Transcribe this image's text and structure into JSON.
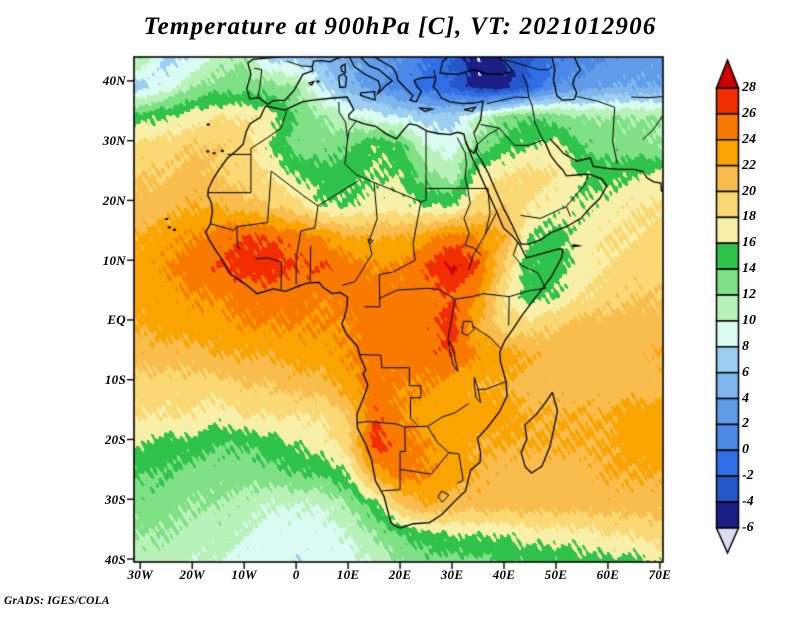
{
  "title": "Temperature at 900hPa [C], VT: 2021012906",
  "credit": "GrADS: IGES/COLA",
  "axes": {
    "lat_ticks": [
      "40N",
      "30N",
      "20N",
      "10N",
      "EQ",
      "10S",
      "20S",
      "30S",
      "40S"
    ],
    "lat_values": [
      40,
      30,
      20,
      10,
      0,
      -10,
      -20,
      -30,
      -40
    ],
    "lon_ticks": [
      "30W",
      "20W",
      "10W",
      "0",
      "10E",
      "20E",
      "30E",
      "40E",
      "50E",
      "60E",
      "70E"
    ],
    "lon_values": [
      -30,
      -20,
      -10,
      0,
      10,
      20,
      30,
      40,
      50,
      60,
      70
    ]
  },
  "colorbar": {
    "labels": [
      "28",
      "26",
      "24",
      "22",
      "20",
      "18",
      "16",
      "14",
      "12",
      "10",
      "8",
      "6",
      "4",
      "2",
      "0",
      "-2",
      "-4",
      "-6"
    ],
    "levels": [
      28,
      26,
      24,
      22,
      20,
      18,
      16,
      14,
      12,
      10,
      8,
      6,
      4,
      2,
      0,
      -2,
      -4,
      -6
    ],
    "colors_top_to_bottom": [
      "#d10000",
      "#f22d00",
      "#f87a00",
      "#f9a400",
      "#f9bd4e",
      "#fad873",
      "#f8f0a8",
      "#2fc34b",
      "#7fe085",
      "#b8f2b8",
      "#d9fbf2",
      "#9bcef0",
      "#7fb6ee",
      "#609ce9",
      "#4a89e7",
      "#2f6fe6",
      "#2457c9",
      "#1b1e86",
      "#dddcf7"
    ]
  },
  "chart_data": {
    "type": "heatmap",
    "title": "Temperature at 900hPa [C], VT: 2021012906",
    "units": "C",
    "level": "900hPa",
    "valid_time": "2021012906",
    "lon_range": [
      -31.2,
      70.6
    ],
    "lat_range": [
      -40.5,
      44.0
    ],
    "contour_levels_min": -6,
    "contour_levels_max": 28,
    "contour_interval": 2,
    "lon": [
      -30,
      -25,
      -20,
      -15,
      -10,
      -5,
      0,
      5,
      10,
      15,
      20,
      25,
      30,
      35,
      40,
      45,
      50,
      55,
      60,
      65,
      70,
      75
    ],
    "lat": [
      44,
      39,
      34,
      29,
      24,
      19,
      14,
      9,
      4,
      -1,
      -6,
      -11,
      -16,
      -21,
      -26,
      -31,
      -36,
      -41
    ],
    "values": [
      [
        12,
        7,
        8,
        11,
        12,
        7,
        7,
        5,
        4,
        3,
        2,
        0,
        -2,
        -6,
        -4,
        -2,
        0,
        1,
        2,
        3,
        3,
        4
      ],
      [
        7,
        9,
        12,
        13,
        13,
        13,
        12,
        8,
        5,
        3,
        1,
        -1,
        -2,
        -5,
        -5,
        -2,
        2,
        3,
        4,
        4,
        4,
        5
      ],
      [
        15,
        16,
        17,
        18,
        18,
        17,
        14,
        12,
        10,
        9,
        8,
        7,
        7,
        10,
        13,
        14,
        13,
        12,
        12,
        12,
        12,
        12
      ],
      [
        19,
        19,
        20,
        20,
        19,
        16,
        13,
        13,
        14,
        16,
        15,
        10,
        9,
        13,
        15,
        16,
        17,
        14,
        13,
        13,
        12,
        12
      ],
      [
        20,
        20,
        21,
        20,
        19,
        18,
        16,
        15,
        15,
        16,
        16,
        13,
        11,
        17,
        18,
        19,
        18,
        16,
        15,
        16,
        17,
        19
      ],
      [
        21,
        21,
        22,
        22,
        21,
        20,
        19,
        16,
        16,
        17,
        17,
        16,
        16,
        19,
        20,
        18,
        17,
        16,
        17,
        18,
        18,
        20
      ],
      [
        22,
        23,
        24,
        25,
        26,
        26,
        25,
        24,
        22,
        22,
        22,
        23,
        25,
        24,
        22,
        16,
        15,
        17,
        18,
        18,
        19,
        20
      ],
      [
        23,
        24,
        25,
        26,
        27,
        27,
        26,
        26,
        25,
        24,
        24,
        26,
        28.5,
        26,
        20,
        14,
        15,
        17,
        18,
        19,
        19,
        20
      ],
      [
        23,
        23,
        24,
        24,
        25,
        25,
        25,
        24,
        25,
        25,
        25,
        25,
        26,
        24,
        18,
        15,
        16,
        18,
        19,
        20,
        20,
        21
      ],
      [
        22,
        23,
        23,
        23,
        24,
        24,
        24,
        24,
        24,
        25,
        25,
        25,
        27,
        22,
        19,
        19,
        20,
        21,
        21,
        21,
        21,
        22
      ],
      [
        21,
        21,
        21,
        22,
        22,
        22,
        23,
        23,
        24,
        25,
        25,
        25,
        26,
        24,
        23,
        22,
        21,
        21,
        21,
        21,
        22,
        22
      ],
      [
        19,
        19,
        19,
        19,
        20,
        20,
        21,
        21,
        23,
        25,
        24,
        24,
        23,
        22,
        22,
        21,
        21,
        21,
        21,
        21,
        21,
        21
      ],
      [
        18,
        18,
        18,
        17,
        18,
        18,
        18,
        18,
        20,
        26,
        24,
        23,
        23,
        23,
        23,
        22,
        22,
        22,
        22,
        23,
        23,
        23
      ],
      [
        16,
        15,
        15,
        14,
        14,
        15,
        16,
        17,
        19,
        27,
        25,
        24,
        23,
        22,
        22,
        22,
        22,
        22,
        22,
        23,
        23,
        23
      ],
      [
        14,
        14,
        13,
        13,
        13,
        13,
        14,
        14,
        16,
        22,
        25,
        24,
        23,
        22,
        21,
        21,
        21,
        21,
        22,
        22,
        22,
        22
      ],
      [
        13,
        13,
        12,
        12,
        11,
        10,
        10,
        10,
        12,
        15,
        20,
        22,
        21,
        21,
        21,
        21,
        21,
        21,
        21,
        21,
        21,
        21
      ],
      [
        12,
        12,
        11,
        11,
        10,
        9,
        9,
        9,
        10,
        12,
        14,
        15,
        16,
        16,
        16,
        17,
        17,
        17,
        18,
        18,
        19,
        19
      ],
      [
        11,
        11,
        10,
        10,
        9,
        9,
        8,
        9,
        9,
        10,
        12,
        13,
        13,
        13,
        14,
        14,
        14,
        15,
        15,
        15,
        16,
        16
      ]
    ]
  }
}
